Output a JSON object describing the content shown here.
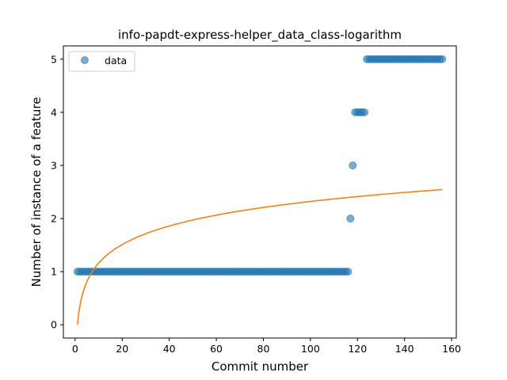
{
  "chart_data": {
    "type": "scatter",
    "title": "info-papdt-express-helper_data_class-logarithm",
    "xlabel": "Commit number",
    "ylabel": "Number of instance of a feature",
    "xlim": [
      -5,
      162
    ],
    "ylim": [
      -0.25,
      5.25
    ],
    "xticks": [
      0,
      20,
      40,
      60,
      80,
      100,
      120,
      140,
      160
    ],
    "yticks": [
      0,
      1,
      2,
      3,
      4,
      5
    ],
    "legend": {
      "position": "top-left",
      "entries": [
        "data"
      ]
    },
    "grid": false,
    "colors": {
      "data": "#1f77b4",
      "fit": "#ff7f0e"
    },
    "series": [
      {
        "name": "data",
        "kind": "scatter",
        "segments": [
          {
            "x_start": 1,
            "x_end": 116,
            "y": 1
          },
          {
            "x_start": 117,
            "x_end": 117,
            "y": 2
          },
          {
            "x_start": 118,
            "x_end": 118,
            "y": 3
          },
          {
            "x_start": 119,
            "x_end": 123,
            "y": 4
          },
          {
            "x_start": 124,
            "x_end": 156,
            "y": 5
          }
        ]
      },
      {
        "kind": "line",
        "fit": {
          "model": "logarithm",
          "a": 0.504,
          "b": 0.0,
          "x_start": 1,
          "x_end": 156
        }
      }
    ]
  }
}
